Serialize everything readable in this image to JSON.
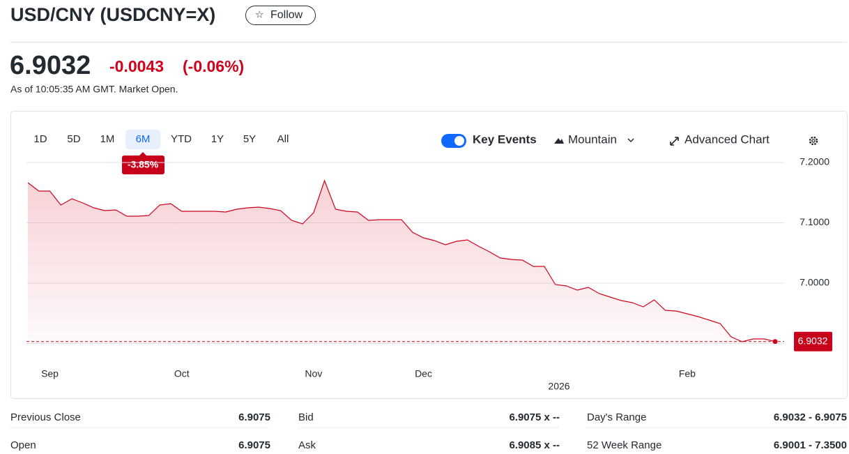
{
  "header": {
    "title": "USD/CNY (USDCNY=X)",
    "follow": "Follow"
  },
  "quote": {
    "price": "6.9032",
    "change": "-0.0043",
    "change_percent": "(-0.06%)",
    "as_of": "As of 10:05:35 AM GMT. Market Open."
  },
  "ranges": {
    "items": [
      "1D",
      "5D",
      "1M",
      "6M",
      "YTD",
      "1Y",
      "5Y",
      "All"
    ],
    "active": 3,
    "active_change": "-3.85%"
  },
  "toolbar": {
    "key_events": "Key Events",
    "chart_type": "Mountain",
    "advanced": "Advanced Chart"
  },
  "chart_data": {
    "type": "area",
    "color": "#d0021b",
    "categories": [
      null,
      null,
      "Sep",
      null,
      null,
      null,
      null,
      null,
      null,
      null,
      null,
      null,
      null,
      null,
      "Oct",
      null,
      null,
      null,
      null,
      null,
      null,
      null,
      null,
      null,
      null,
      null,
      "Nov",
      null,
      null,
      null,
      null,
      null,
      null,
      null,
      null,
      null,
      "Dec",
      null,
      null,
      null,
      null,
      null,
      null,
      null,
      null,
      null,
      null,
      null,
      null,
      null,
      null,
      null,
      null,
      null,
      null,
      null,
      null,
      null,
      null,
      null,
      "Feb",
      null,
      null,
      null,
      null,
      null,
      null,
      null,
      null
    ],
    "year_label": "2026",
    "values": [
      7.1665,
      7.1526,
      7.1526,
      7.1295,
      7.1399,
      7.1329,
      7.1249,
      7.1202,
      7.1214,
      7.111,
      7.111,
      7.1121,
      7.1295,
      7.1318,
      7.1191,
      7.1191,
      7.1191,
      7.1191,
      7.1179,
      7.1225,
      7.1249,
      7.126,
      7.1237,
      7.1202,
      7.104,
      7.0983,
      7.1168,
      7.1699,
      7.1225,
      7.1191,
      7.1179,
      7.104,
      7.1052,
      7.1052,
      7.1052,
      7.0844,
      7.0751,
      7.0705,
      7.0636,
      7.0694,
      7.0717,
      7.0613,
      7.052,
      7.0416,
      7.0393,
      7.0382,
      7.0277,
      7.0277,
      6.9977,
      6.9954,
      6.9884,
      6.9931,
      6.9827,
      6.9769,
      6.9711,
      6.9676,
      6.9607,
      6.9723,
      6.9549,
      6.9538,
      6.9491,
      6.9445,
      6.9387,
      6.9329,
      6.911,
      6.9029,
      6.9075,
      6.9075,
      6.9032
    ],
    "ylim": [
      6.9,
      7.2
    ],
    "yticks": [
      {
        "value": 7.2,
        "label": "7.2000"
      },
      {
        "value": 7.1,
        "label": "7.1000"
      },
      {
        "value": 7.0,
        "label": "7.0000"
      }
    ],
    "grid": true
  },
  "stats": {
    "rows": [
      [
        [
          "Previous Close",
          "6.9075"
        ],
        [
          "Bid",
          "6.9075 x --"
        ],
        [
          "Day's Range",
          "6.9032 - 6.9075"
        ]
      ],
      [
        [
          "Open",
          "6.9075"
        ],
        [
          "Ask",
          "6.9085 x --"
        ],
        [
          "52 Week Range",
          "6.9001 - 7.3500"
        ]
      ]
    ]
  }
}
